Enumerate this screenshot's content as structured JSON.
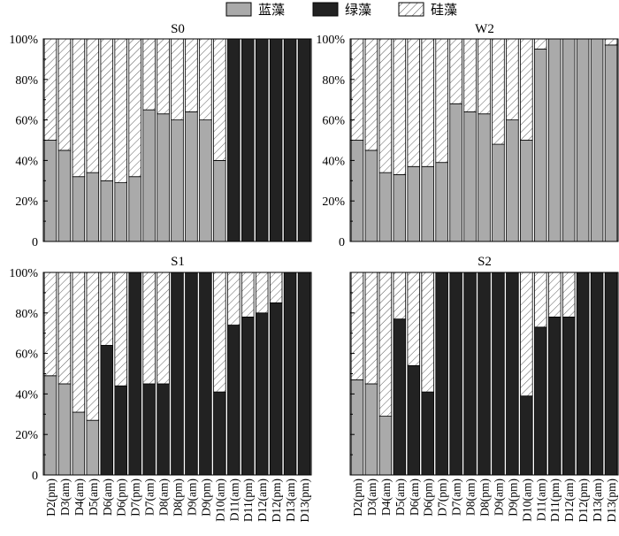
{
  "legend": [
    {
      "key": "blue",
      "label": "蓝藻",
      "fill": "#aaaaaa"
    },
    {
      "key": "green",
      "label": "绿藻",
      "fill": "#222222"
    },
    {
      "key": "diatom",
      "label": "硅藻",
      "fill": "hatch"
    }
  ],
  "chart_data": [
    {
      "type": "bar",
      "stacked": true,
      "normalized": true,
      "title": "S0",
      "categories": [
        "D2(pm)",
        "D3(am)",
        "D4(am)",
        "D5(am)",
        "D6(am)",
        "D6(pm)",
        "D7(pm)",
        "D7(am)",
        "D8(am)",
        "D8(pm)",
        "D9(am)",
        "D9(pm)",
        "D10(am)",
        "D11(am)",
        "D11(pm)",
        "D12(am)",
        "D12(pm)",
        "D13(am)",
        "D13(pm)"
      ],
      "series": [
        {
          "name": "蓝藻",
          "values": [
            50,
            45,
            32,
            34,
            30,
            29,
            32,
            65,
            63,
            60,
            64,
            60,
            40,
            0,
            0,
            0,
            0,
            0,
            0
          ]
        },
        {
          "name": "绿藻",
          "values": [
            0,
            0,
            0,
            0,
            0,
            0,
            0,
            0,
            0,
            0,
            0,
            0,
            0,
            100,
            100,
            100,
            100,
            100,
            100
          ]
        },
        {
          "name": "硅藻",
          "values": [
            50,
            55,
            68,
            66,
            70,
            71,
            68,
            35,
            37,
            40,
            36,
            40,
            60,
            0,
            0,
            0,
            0,
            0,
            0
          ]
        }
      ],
      "ylim": [
        0,
        100
      ],
      "yticks": [
        "0",
        "20%",
        "40%",
        "60%",
        "80%",
        "100%"
      ],
      "show_xticks": false,
      "show_yticks": true
    },
    {
      "type": "bar",
      "stacked": true,
      "normalized": true,
      "title": "W2",
      "categories": [
        "D2(pm)",
        "D3(am)",
        "D4(am)",
        "D5(am)",
        "D6(am)",
        "D6(pm)",
        "D7(pm)",
        "D7(am)",
        "D8(am)",
        "D8(pm)",
        "D9(am)",
        "D9(pm)",
        "D10(am)",
        "D11(am)",
        "D11(pm)",
        "D12(am)",
        "D12(pm)",
        "D13(am)",
        "D13(pm)"
      ],
      "series": [
        {
          "name": "蓝藻",
          "values": [
            50,
            45,
            34,
            33,
            37,
            37,
            39,
            68,
            64,
            63,
            48,
            60,
            50,
            95,
            100,
            100,
            100,
            100,
            97
          ]
        },
        {
          "name": "绿藻",
          "values": [
            0,
            0,
            0,
            0,
            0,
            0,
            0,
            0,
            0,
            0,
            0,
            0,
            0,
            0,
            0,
            0,
            0,
            0,
            0
          ]
        },
        {
          "name": "硅藻",
          "values": [
            50,
            55,
            66,
            67,
            63,
            63,
            61,
            32,
            36,
            37,
            52,
            40,
            50,
            5,
            0,
            0,
            0,
            0,
            3
          ]
        }
      ],
      "ylim": [
        0,
        100
      ],
      "yticks": [
        "0",
        "20%",
        "40%",
        "60%",
        "80%",
        "100%"
      ],
      "show_xticks": false,
      "show_yticks": true
    },
    {
      "type": "bar",
      "stacked": true,
      "normalized": true,
      "title": "S1",
      "categories": [
        "D2(pm)",
        "D3(am)",
        "D4(am)",
        "D5(am)",
        "D6(am)",
        "D6(pm)",
        "D7(pm)",
        "D7(am)",
        "D8(am)",
        "D8(pm)",
        "D9(am)",
        "D9(pm)",
        "D10(am)",
        "D11(am)",
        "D11(pm)",
        "D12(am)",
        "D12(pm)",
        "D13(am)",
        "D13(pm)"
      ],
      "series": [
        {
          "name": "蓝藻",
          "values": [
            49,
            45,
            31,
            27,
            0,
            0,
            0,
            0,
            0,
            0,
            0,
            0,
            0,
            0,
            0,
            0,
            0,
            0,
            0
          ]
        },
        {
          "name": "绿藻",
          "values": [
            0,
            0,
            0,
            0,
            64,
            44,
            100,
            45,
            45,
            100,
            100,
            100,
            41,
            74,
            78,
            80,
            85,
            100,
            100
          ]
        },
        {
          "name": "硅藻",
          "values": [
            51,
            55,
            69,
            73,
            36,
            56,
            0,
            55,
            55,
            0,
            0,
            0,
            59,
            26,
            22,
            20,
            15,
            0,
            0
          ]
        }
      ],
      "ylim": [
        0,
        100
      ],
      "yticks": [
        "0",
        "20%",
        "40%",
        "60%",
        "80%",
        "100%"
      ],
      "show_xticks": true,
      "show_yticks": true
    },
    {
      "type": "bar",
      "stacked": true,
      "normalized": true,
      "title": "S2",
      "categories": [
        "D2(pm)",
        "D3(am)",
        "D4(am)",
        "D5(am)",
        "D6(am)",
        "D6(pm)",
        "D7(pm)",
        "D7(am)",
        "D8(am)",
        "D8(pm)",
        "D9(am)",
        "D9(pm)",
        "D10(am)",
        "D11(am)",
        "D11(pm)",
        "D12(am)",
        "D12(pm)",
        "D13(am)",
        "D13(pm)"
      ],
      "series": [
        {
          "name": "蓝藻",
          "values": [
            47,
            45,
            29,
            0,
            0,
            0,
            0,
            0,
            0,
            0,
            0,
            0,
            0,
            0,
            0,
            0,
            0,
            0,
            0
          ]
        },
        {
          "name": "绿藻",
          "values": [
            0,
            0,
            0,
            77,
            54,
            41,
            100,
            100,
            100,
            100,
            100,
            100,
            39,
            73,
            78,
            78,
            100,
            100,
            100
          ]
        },
        {
          "name": "硅藻",
          "values": [
            53,
            55,
            71,
            23,
            46,
            59,
            0,
            0,
            0,
            0,
            0,
            0,
            61,
            27,
            22,
            22,
            0,
            0,
            0
          ]
        }
      ],
      "ylim": [
        0,
        100
      ],
      "yticks": [
        "0",
        "20%",
        "40%",
        "60%",
        "80%",
        "100%"
      ],
      "show_xticks": true,
      "show_yticks": false
    }
  ]
}
